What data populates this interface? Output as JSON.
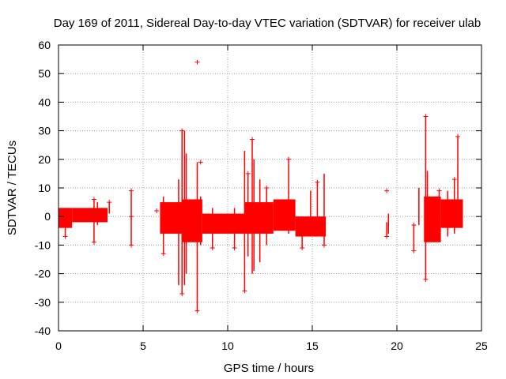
{
  "chart_data": {
    "type": "scatter",
    "title": "Day 169 of 2011, Sidereal Day-to-day VTEC variation (SDTVAR) for receiver ulab",
    "xlabel": "GPS time / hours",
    "ylabel": "SDTVAR / TECUs",
    "xlim": [
      0,
      25
    ],
    "ylim": [
      -40,
      60
    ],
    "grid": true,
    "x_ticks": [
      0,
      5,
      10,
      15,
      20,
      25
    ],
    "y_ticks": [
      -40,
      -30,
      -20,
      -10,
      0,
      10,
      20,
      30,
      40,
      50,
      60
    ],
    "series_color": "#ff0000",
    "marker": "plus",
    "bands": [
      {
        "x0": 0.0,
        "x1": 0.8,
        "lo": -4,
        "hi": 3
      },
      {
        "x0": 0.8,
        "x1": 2.9,
        "lo": -2,
        "hi": 3
      },
      {
        "x0": 6.0,
        "x1": 7.3,
        "lo": -6,
        "hi": 5
      },
      {
        "x0": 7.3,
        "x1": 8.5,
        "lo": -9,
        "hi": 6
      },
      {
        "x0": 8.5,
        "x1": 11.0,
        "lo": -6,
        "hi": 1
      },
      {
        "x0": 11.0,
        "x1": 12.7,
        "lo": -6,
        "hi": 5
      },
      {
        "x0": 12.7,
        "x1": 14.0,
        "lo": -5,
        "hi": 6
      },
      {
        "x0": 14.0,
        "x1": 15.8,
        "lo": -7,
        "hi": 0
      },
      {
        "x0": 21.6,
        "x1": 22.6,
        "lo": -9,
        "hi": 7
      },
      {
        "x0": 22.6,
        "x1": 23.9,
        "lo": -4,
        "hi": 6
      }
    ],
    "spikes": [
      {
        "x": 0.4,
        "lo": -7,
        "hi": 3
      },
      {
        "x": 2.1,
        "lo": -9,
        "hi": 6
      },
      {
        "x": 2.3,
        "lo": -3,
        "hi": 5
      },
      {
        "x": 3.0,
        "lo": 1,
        "hi": 5
      },
      {
        "x": 4.3,
        "lo": -10,
        "hi": 9
      },
      {
        "x": 6.2,
        "lo": -13,
        "hi": 7
      },
      {
        "x": 7.1,
        "lo": -24,
        "hi": 13
      },
      {
        "x": 7.3,
        "lo": -27,
        "hi": 30
      },
      {
        "x": 7.45,
        "lo": -24,
        "hi": 30
      },
      {
        "x": 7.55,
        "lo": -20,
        "hi": 22
      },
      {
        "x": 8.2,
        "lo": -33,
        "hi": 19
      },
      {
        "x": 8.4,
        "lo": -10,
        "hi": 7
      },
      {
        "x": 9.1,
        "lo": -11,
        "hi": 3
      },
      {
        "x": 10.4,
        "lo": -11,
        "hi": 3
      },
      {
        "x": 11.0,
        "lo": -26,
        "hi": 23
      },
      {
        "x": 11.2,
        "lo": -14,
        "hi": 15
      },
      {
        "x": 11.45,
        "lo": -20,
        "hi": 27
      },
      {
        "x": 11.55,
        "lo": -19,
        "hi": 20
      },
      {
        "x": 11.9,
        "lo": -16,
        "hi": 13
      },
      {
        "x": 12.3,
        "lo": -10,
        "hi": 10
      },
      {
        "x": 13.6,
        "lo": -6,
        "hi": 20
      },
      {
        "x": 14.4,
        "lo": -11,
        "hi": 0
      },
      {
        "x": 14.9,
        "lo": -6,
        "hi": 9
      },
      {
        "x": 15.3,
        "lo": -4,
        "hi": 12
      },
      {
        "x": 15.7,
        "lo": -10,
        "hi": 15
      },
      {
        "x": 19.4,
        "lo": -7,
        "hi": -2
      },
      {
        "x": 19.5,
        "lo": -6,
        "hi": 1
      },
      {
        "x": 21.0,
        "lo": -12,
        "hi": -3
      },
      {
        "x": 21.3,
        "lo": -3,
        "hi": 10
      },
      {
        "x": 21.7,
        "lo": -22,
        "hi": 35
      },
      {
        "x": 21.8,
        "lo": -7,
        "hi": 16
      },
      {
        "x": 22.5,
        "lo": -6,
        "hi": 9
      },
      {
        "x": 23.0,
        "lo": -7,
        "hi": 9
      },
      {
        "x": 23.4,
        "lo": -6,
        "hi": 13
      },
      {
        "x": 23.6,
        "lo": -3,
        "hi": 28
      }
    ],
    "points": [
      {
        "x": 8.2,
        "y": 54
      },
      {
        "x": 19.4,
        "y": 9
      },
      {
        "x": 21.7,
        "y": 35
      },
      {
        "x": 21.7,
        "y": -22
      },
      {
        "x": 23.6,
        "y": 28
      },
      {
        "x": 8.2,
        "y": -33
      },
      {
        "x": 11.0,
        "y": -26
      },
      {
        "x": 4.3,
        "y": -10
      },
      {
        "x": 4.3,
        "y": 9
      },
      {
        "x": 4.3,
        "y": 0
      },
      {
        "x": 14.4,
        "y": -11
      },
      {
        "x": 15.7,
        "y": -10
      },
      {
        "x": 21.0,
        "y": -12
      },
      {
        "x": 21.0,
        "y": -3
      },
      {
        "x": 19.4,
        "y": -7
      },
      {
        "x": 5.8,
        "y": 2
      },
      {
        "x": 13.6,
        "y": 20
      },
      {
        "x": 11.45,
        "y": 27
      },
      {
        "x": 7.3,
        "y": -27
      },
      {
        "x": 7.3,
        "y": 30
      },
      {
        "x": 6.2,
        "y": -13
      },
      {
        "x": 15.3,
        "y": 12
      },
      {
        "x": 11.2,
        "y": 15
      },
      {
        "x": 8.4,
        "y": 19
      },
      {
        "x": 2.1,
        "y": 6
      },
      {
        "x": 2.1,
        "y": -9
      },
      {
        "x": 3.0,
        "y": 5
      },
      {
        "x": 23.4,
        "y": 13
      },
      {
        "x": 22.5,
        "y": 9
      },
      {
        "x": 0.4,
        "y": -7
      },
      {
        "x": 9.1,
        "y": -11
      },
      {
        "x": 10.4,
        "y": -11
      },
      {
        "x": 12.3,
        "y": 10
      }
    ]
  }
}
